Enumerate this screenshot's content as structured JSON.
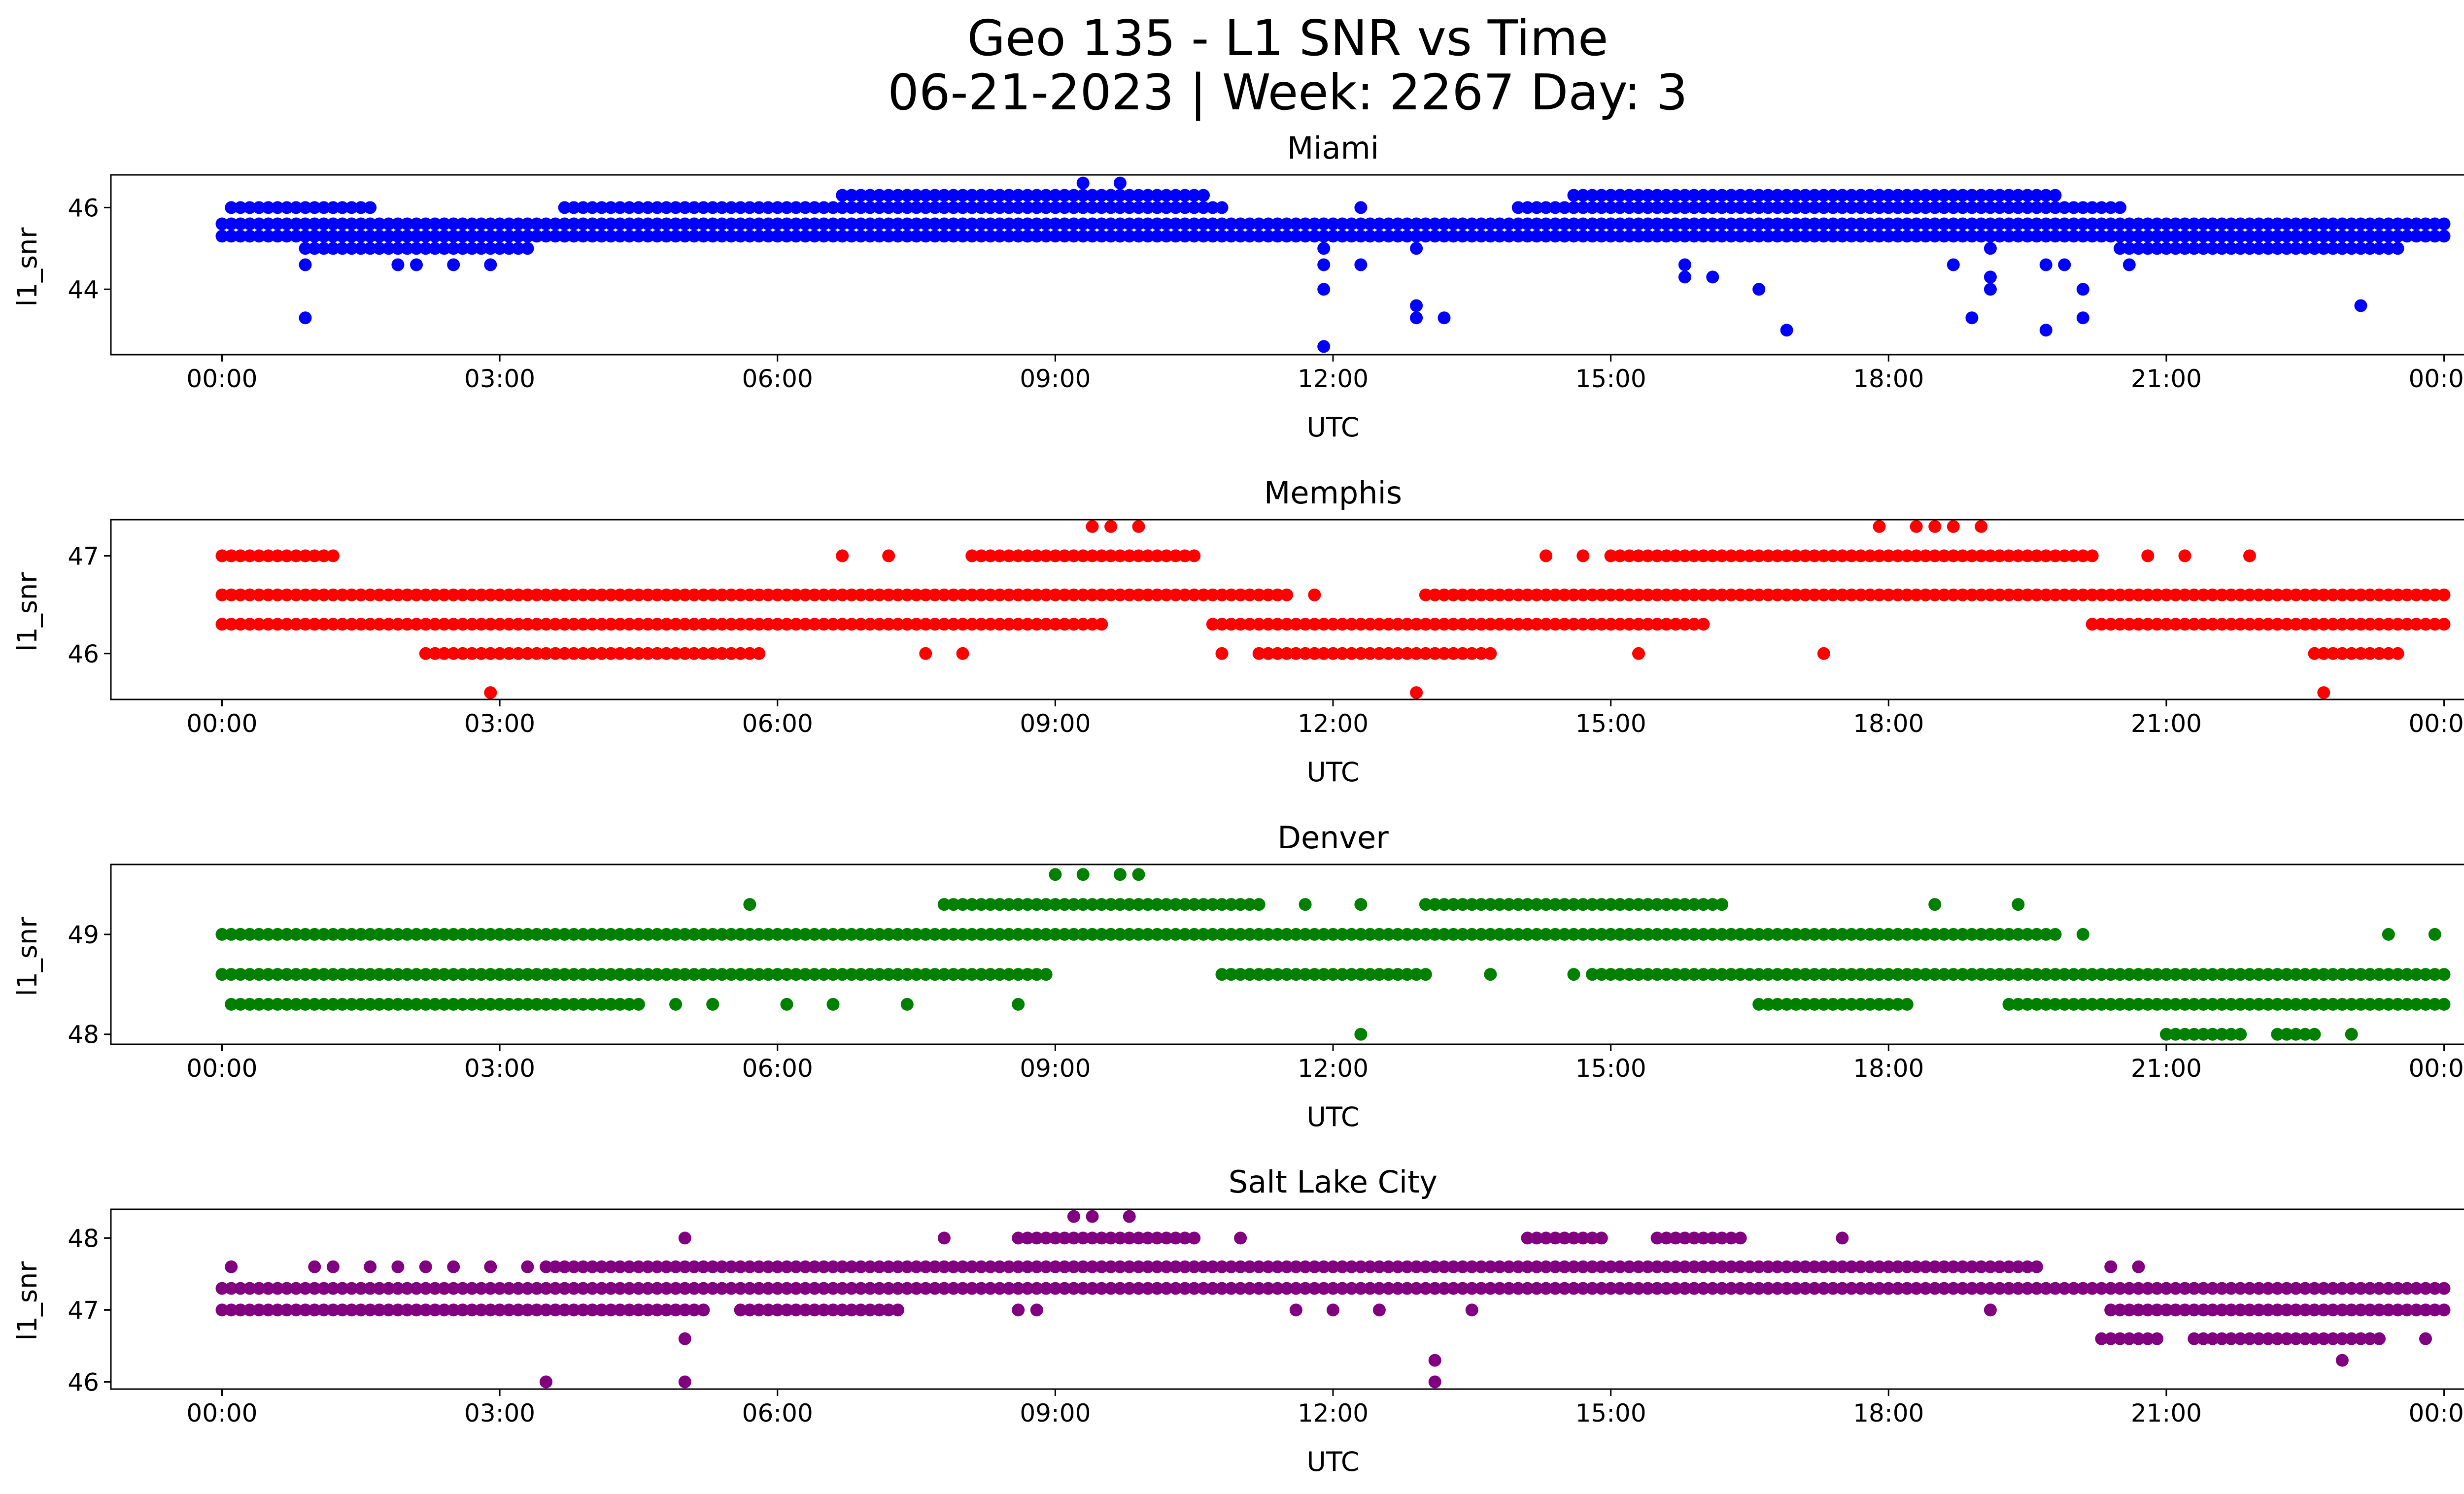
{
  "figure": {
    "title_line1": "Geo 135 - L1 SNR vs Time",
    "title_line2": "06-21-2023 | Week: 2267 Day: 3"
  },
  "chart_data": [
    {
      "type": "scatter",
      "title": "Miami",
      "xlabel": "UTC",
      "ylabel": "l1_snr",
      "color": "#0000ff",
      "x_unit": "hours UTC",
      "xlim": [
        -1.2,
        25.2
      ],
      "ylim": [
        42.4,
        46.8
      ],
      "x_ticks": [
        0,
        3,
        6,
        9,
        12,
        15,
        18,
        21,
        24
      ],
      "x_tick_labels": [
        "00:00",
        "03:00",
        "06:00",
        "09:00",
        "12:00",
        "15:00",
        "18:00",
        "21:00",
        "00:00"
      ],
      "y_ticks": [
        44,
        46
      ],
      "y_tick_labels": [
        "44",
        "46"
      ],
      "bands": [
        {
          "y": 45.6,
          "x_range": [
            0.0,
            24.0
          ]
        },
        {
          "y": 45.3,
          "x_range": [
            0.0,
            24.0
          ]
        },
        {
          "y": 46.0,
          "x_range": [
            0.1,
            1.6
          ]
        },
        {
          "y": 45.0,
          "x_range": [
            0.9,
            3.3
          ]
        },
        {
          "y": 45.3,
          "x_range": [
            0.9,
            3.3
          ]
        },
        {
          "y": 46.0,
          "x_range": [
            3.7,
            10.8
          ]
        },
        {
          "y": 46.3,
          "x_range": [
            6.7,
            10.6
          ]
        },
        {
          "y": 46.0,
          "x_range": [
            14.0,
            20.5
          ]
        },
        {
          "y": 46.3,
          "x_range": [
            14.6,
            19.8
          ]
        },
        {
          "y": 45.0,
          "x_range": [
            20.5,
            23.5
          ]
        }
      ],
      "points": [
        [
          0.9,
          43.3
        ],
        [
          0.9,
          44.6
        ],
        [
          1.9,
          44.6
        ],
        [
          2.1,
          44.6
        ],
        [
          2.5,
          44.6
        ],
        [
          2.9,
          44.6
        ],
        [
          8.7,
          45.3
        ],
        [
          9.3,
          46.6
        ],
        [
          9.7,
          46.6
        ],
        [
          9.7,
          45.3
        ],
        [
          11.9,
          45.0
        ],
        [
          11.9,
          44.6
        ],
        [
          11.9,
          44.0
        ],
        [
          11.9,
          42.6
        ],
        [
          12.3,
          44.6
        ],
        [
          12.3,
          46.0
        ],
        [
          12.9,
          45.0
        ],
        [
          12.9,
          43.6
        ],
        [
          12.9,
          43.3
        ],
        [
          13.2,
          43.3
        ],
        [
          15.8,
          44.6
        ],
        [
          15.8,
          44.3
        ],
        [
          16.1,
          44.3
        ],
        [
          16.6,
          44.0
        ],
        [
          16.9,
          43.0
        ],
        [
          18.7,
          44.6
        ],
        [
          18.9,
          43.3
        ],
        [
          19.1,
          45.0
        ],
        [
          19.1,
          44.3
        ],
        [
          19.1,
          44.0
        ],
        [
          19.5,
          46.3
        ],
        [
          19.7,
          44.6
        ],
        [
          19.7,
          43.0
        ],
        [
          19.9,
          44.6
        ],
        [
          20.1,
          44.0
        ],
        [
          20.1,
          43.3
        ],
        [
          20.6,
          44.6
        ],
        [
          22.9,
          45.0
        ],
        [
          23.1,
          43.6
        ]
      ]
    },
    {
      "type": "scatter",
      "title": "Memphis",
      "xlabel": "UTC",
      "ylabel": "l1_snr",
      "color": "#ff0000",
      "x_unit": "hours UTC",
      "xlim": [
        -1.2,
        25.2
      ],
      "ylim": [
        45.53,
        47.37
      ],
      "x_ticks": [
        0,
        3,
        6,
        9,
        12,
        15,
        18,
        21,
        24
      ],
      "x_tick_labels": [
        "00:00",
        "03:00",
        "06:00",
        "09:00",
        "12:00",
        "15:00",
        "18:00",
        "21:00",
        "00:00"
      ],
      "y_ticks": [
        46,
        47
      ],
      "y_tick_labels": [
        "46",
        "47"
      ],
      "bands": [
        {
          "y": 47.0,
          "x_range": [
            0.0,
            1.1
          ]
        },
        {
          "y": 46.6,
          "x_range": [
            0.0,
            11.5
          ]
        },
        {
          "y": 46.3,
          "x_range": [
            0.0,
            9.5
          ]
        },
        {
          "y": 46.0,
          "x_range": [
            2.2,
            5.8
          ]
        },
        {
          "y": 47.0,
          "x_range": [
            8.1,
            10.5
          ]
        },
        {
          "y": 46.3,
          "x_range": [
            10.7,
            13.1
          ]
        },
        {
          "y": 46.0,
          "x_range": [
            11.2,
            13.7
          ]
        },
        {
          "y": 46.6,
          "x_range": [
            13.0,
            24.0
          ]
        },
        {
          "y": 47.0,
          "x_range": [
            15.0,
            20.2
          ]
        },
        {
          "y": 46.3,
          "x_range": [
            13.0,
            16.0
          ]
        },
        {
          "y": 46.3,
          "x_range": [
            20.2,
            24.0
          ]
        },
        {
          "y": 46.0,
          "x_range": [
            22.6,
            23.5
          ]
        }
      ],
      "points": [
        [
          1.2,
          47.0
        ],
        [
          2.9,
          45.6
        ],
        [
          3.2,
          46.6
        ],
        [
          7.6,
          46.0
        ],
        [
          8.0,
          46.0
        ],
        [
          6.7,
          47.0
        ],
        [
          7.2,
          47.0
        ],
        [
          9.4,
          47.3
        ],
        [
          9.6,
          47.3
        ],
        [
          9.9,
          47.3
        ],
        [
          11.8,
          46.6
        ],
        [
          10.8,
          46.0
        ],
        [
          12.9,
          45.6
        ],
        [
          14.3,
          47.0
        ],
        [
          14.7,
          47.0
        ],
        [
          15.3,
          46.0
        ],
        [
          17.3,
          46.0
        ],
        [
          17.9,
          47.3
        ],
        [
          18.3,
          47.3
        ],
        [
          18.5,
          47.3
        ],
        [
          18.7,
          47.3
        ],
        [
          19.0,
          47.3
        ],
        [
          20.8,
          47.0
        ],
        [
          21.2,
          47.0
        ],
        [
          21.9,
          47.0
        ],
        [
          22.7,
          45.6
        ]
      ]
    },
    {
      "type": "scatter",
      "title": "Denver",
      "xlabel": "UTC",
      "ylabel": "l1_snr",
      "color": "#008000",
      "x_unit": "hours UTC",
      "xlim": [
        -1.2,
        25.2
      ],
      "ylim": [
        47.9,
        49.7
      ],
      "x_ticks": [
        0,
        3,
        6,
        9,
        12,
        15,
        18,
        21,
        24
      ],
      "x_tick_labels": [
        "00:00",
        "03:00",
        "06:00",
        "09:00",
        "12:00",
        "15:00",
        "18:00",
        "21:00",
        "00:00"
      ],
      "y_ticks": [
        48,
        49
      ],
      "y_tick_labels": [
        "48",
        "49"
      ],
      "bands": [
        {
          "y": 49.0,
          "x_range": [
            0.0,
            19.8
          ]
        },
        {
          "y": 48.6,
          "x_range": [
            0.0,
            8.9
          ]
        },
        {
          "y": 48.3,
          "x_range": [
            0.1,
            4.5
          ]
        },
        {
          "y": 49.3,
          "x_range": [
            7.8,
            11.2
          ]
        },
        {
          "y": 48.6,
          "x_range": [
            10.8,
            13.0
          ]
        },
        {
          "y": 49.3,
          "x_range": [
            13.0,
            16.2
          ]
        },
        {
          "y": 48.6,
          "x_range": [
            14.8,
            24.0
          ]
        },
        {
          "y": 48.3,
          "x_range": [
            16.6,
            18.2
          ]
        },
        {
          "y": 48.3,
          "x_range": [
            19.3,
            24.0
          ]
        },
        {
          "y": 48.0,
          "x_range": [
            21.0,
            21.8
          ]
        },
        {
          "y": 48.0,
          "x_range": [
            22.2,
            22.6
          ]
        }
      ],
      "points": [
        [
          5.7,
          49.3
        ],
        [
          4.9,
          48.3
        ],
        [
          5.3,
          48.3
        ],
        [
          6.1,
          48.3
        ],
        [
          6.6,
          48.3
        ],
        [
          7.4,
          48.3
        ],
        [
          8.6,
          48.3
        ],
        [
          9.0,
          49.6
        ],
        [
          9.3,
          49.6
        ],
        [
          9.7,
          49.6
        ],
        [
          9.9,
          49.6
        ],
        [
          11.7,
          49.3
        ],
        [
          12.3,
          49.3
        ],
        [
          12.3,
          48.0
        ],
        [
          13.7,
          48.6
        ],
        [
          14.6,
          48.6
        ],
        [
          18.5,
          49.3
        ],
        [
          19.4,
          49.3
        ],
        [
          20.1,
          49.0
        ],
        [
          23.0,
          48.0
        ],
        [
          23.4,
          49.0
        ],
        [
          23.9,
          49.0
        ]
      ]
    },
    {
      "type": "scatter",
      "title": "Salt Lake City",
      "xlabel": "UTC",
      "ylabel": "l1_snr",
      "color": "#800080",
      "x_unit": "hours UTC",
      "xlim": [
        -1.2,
        25.2
      ],
      "ylim": [
        45.9,
        48.4
      ],
      "x_ticks": [
        0,
        3,
        6,
        9,
        12,
        15,
        18,
        21,
        24
      ],
      "x_tick_labels": [
        "00:00",
        "03:00",
        "06:00",
        "09:00",
        "12:00",
        "15:00",
        "18:00",
        "21:00",
        "00:00"
      ],
      "y_ticks": [
        46,
        47,
        48
      ],
      "y_tick_labels": [
        "46",
        "47",
        "48"
      ],
      "bands": [
        {
          "y": 47.3,
          "x_range": [
            0.0,
            24.0
          ]
        },
        {
          "y": 47.0,
          "x_range": [
            0.0,
            5.2
          ]
        },
        {
          "y": 47.6,
          "x_range": [
            3.5,
            19.6
          ]
        },
        {
          "y": 48.0,
          "x_range": [
            8.6,
            10.5
          ]
        },
        {
          "y": 47.0,
          "x_range": [
            5.6,
            7.3
          ]
        },
        {
          "y": 47.0,
          "x_range": [
            20.4,
            24.0
          ]
        },
        {
          "y": 48.0,
          "x_range": [
            14.1,
            14.9
          ]
        },
        {
          "y": 48.0,
          "x_range": [
            15.5,
            16.4
          ]
        },
        {
          "y": 46.6,
          "x_range": [
            20.3,
            20.9
          ]
        },
        {
          "y": 46.6,
          "x_range": [
            21.3,
            23.3
          ]
        }
      ],
      "points": [
        [
          0.1,
          47.6
        ],
        [
          1.0,
          47.6
        ],
        [
          1.2,
          47.6
        ],
        [
          1.6,
          47.6
        ],
        [
          1.9,
          47.6
        ],
        [
          2.2,
          47.6
        ],
        [
          2.5,
          47.6
        ],
        [
          2.9,
          47.6
        ],
        [
          3.3,
          47.6
        ],
        [
          3.5,
          46.0
        ],
        [
          5.0,
          48.0
        ],
        [
          5.0,
          46.6
        ],
        [
          5.0,
          46.0
        ],
        [
          7.8,
          48.0
        ],
        [
          8.6,
          47.0
        ],
        [
          8.8,
          47.0
        ],
        [
          9.2,
          48.3
        ],
        [
          9.4,
          48.3
        ],
        [
          9.8,
          48.3
        ],
        [
          11.0,
          48.0
        ],
        [
          11.6,
          47.0
        ],
        [
          12.0,
          47.0
        ],
        [
          12.5,
          47.0
        ],
        [
          13.1,
          46.3
        ],
        [
          13.1,
          46.0
        ],
        [
          13.5,
          47.0
        ],
        [
          17.5,
          48.0
        ],
        [
          19.1,
          47.0
        ],
        [
          20.4,
          47.6
        ],
        [
          20.7,
          47.6
        ],
        [
          22.9,
          46.3
        ],
        [
          23.8,
          46.6
        ]
      ]
    }
  ]
}
